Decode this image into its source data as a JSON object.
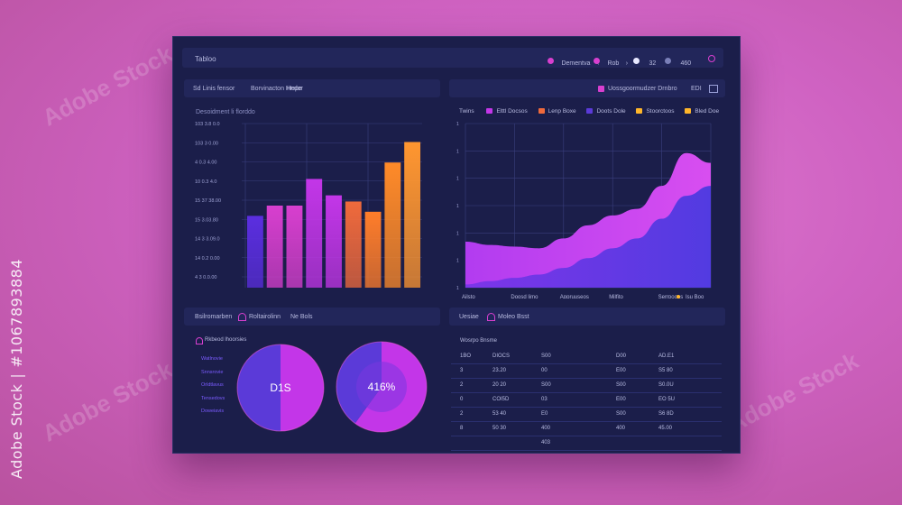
{
  "side_caption": {
    "brand": "Adobe Stock",
    "id": "#1067893884"
  },
  "watermark_text": "Adobe Stock",
  "topbar": {
    "title": "Tabloo",
    "items": [
      {
        "icon": "bell-icon",
        "label": "Dementva"
      },
      {
        "icon": "user-icon",
        "label": "Rob"
      },
      {
        "icon": "info-icon",
        "label": "32"
      },
      {
        "icon": "settings-icon",
        "label": "460"
      }
    ]
  },
  "left_chart": {
    "header": {
      "items": [
        "Sd Linis fensor",
        "Borvinacton Hndor",
        "Hepe"
      ]
    },
    "subtitle": "Desoidment li florddo",
    "y_ticks": [
      "103 3.8 0.0",
      "103 3 0.00",
      "4 0.3 4.00",
      "10 0.3 4.0",
      "15 37 38.00",
      "15 3.03.80",
      "14 3 3.09.0",
      "14 0.2 0.00",
      "4 3 0.0.00"
    ],
    "chart_data": {
      "type": "bar",
      "categories": [
        "1",
        "2",
        "3",
        "4",
        "5",
        "6",
        "7",
        "8",
        "9"
      ],
      "values": [
        35,
        40,
        40,
        53,
        45,
        42,
        37,
        61,
        71
      ],
      "colors": [
        "#5b2ee0",
        "#d83fcf",
        "#d83fcf",
        "#c336e8",
        "#c336e8",
        "#f06a3c",
        "#ff7d2a",
        "#ff8a28",
        "#ff9630"
      ],
      "ylim": [
        0,
        80
      ],
      "title": "",
      "xlabel": "",
      "ylabel": ""
    }
  },
  "right_chart": {
    "header": {
      "text": "Uossgoormudzer Drnbro",
      "value": "EDI"
    },
    "legend_title": "Twins",
    "legend": [
      {
        "label": "Elttl Docsos",
        "color": "#c336e8"
      },
      {
        "label": "Lenp Boxe",
        "color": "#f06a3c"
      },
      {
        "label": "Doots Dole",
        "color": "#5b3ad8"
      },
      {
        "label": "Stoorctoos",
        "color": "#ffb62a"
      },
      {
        "label": "Bled Doe",
        "color": "#ffb62a"
      }
    ],
    "x_labels": [
      "Ailsto",
      "Doosd limo",
      "Appruuseos",
      "Milfito",
      "Serrpooos",
      "Isu Boo"
    ],
    "chart_data": {
      "type": "area",
      "x": [
        0,
        1,
        2,
        3,
        4,
        5,
        6,
        7,
        8,
        9,
        10
      ],
      "series": [
        {
          "values": [
            28,
            26,
            25,
            24,
            30,
            38,
            44,
            48,
            62,
            82,
            76
          ]
        },
        {
          "values": [
            2,
            4,
            6,
            8,
            12,
            18,
            24,
            30,
            42,
            56,
            62
          ]
        }
      ],
      "ylim": [
        0,
        100
      ],
      "title": "",
      "xlabel": "",
      "ylabel": ""
    }
  },
  "bottom_left": {
    "header": {
      "items": [
        "Bsilromarben",
        "Roltairolinn",
        "Ne Bols"
      ]
    },
    "list_title": "Rkbeod lhoorsies",
    "list_items": [
      "Watlnovie",
      "Snnsrovie",
      "Orldtlavus",
      "Tensedovs",
      "Doweiavis"
    ],
    "donut1": {
      "label": "D1S",
      "chart_data": {
        "type": "pie",
        "values": [
          50,
          50
        ],
        "colors": [
          "#c336e8",
          "#5b3ad8"
        ]
      }
    },
    "donut2": {
      "label": "416%",
      "chart_data": {
        "type": "pie",
        "values": [
          60,
          40
        ],
        "colors": [
          "#c336e8",
          "#5b3ad8"
        ]
      }
    }
  },
  "bottom_right": {
    "header": {
      "title": "Uesiae",
      "sub": "Moleo Bsst"
    },
    "table_title": "Wosrpo Bnsme",
    "rows": [
      [
        "1BO",
        "DIOCS",
        "S00",
        "D00",
        "AD.E1"
      ],
      [
        "3",
        "23.20",
        "00",
        "E00",
        "S5 80"
      ],
      [
        "2",
        "20 20",
        "S00",
        "S00",
        "S0.0U"
      ],
      [
        "0",
        "COI5D",
        "03",
        "E00",
        "EO 5U"
      ],
      [
        "2",
        "53 40",
        "E0",
        "S00",
        "S6 8D"
      ],
      [
        "8",
        "50 30",
        "400",
        "400",
        "45.00"
      ],
      [
        "",
        "",
        "403",
        "",
        ""
      ]
    ]
  }
}
